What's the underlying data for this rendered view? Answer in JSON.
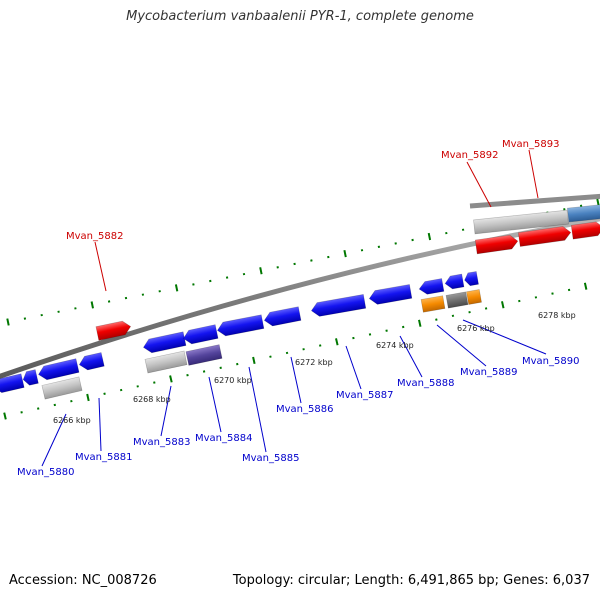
{
  "title": "Mycobacterium vanbaalenii PYR-1, complete genome",
  "footer": {
    "accession": "Accession: NC_008726",
    "stats": "Topology: circular; Length: 6,491,865 bp; Genes: 6,037"
  },
  "colors": {
    "background": "#ffffff",
    "backbone": "#808080",
    "forward_gene": "#ff0000",
    "reverse_gene": "#0000ee",
    "pseudo_or_rna": "#bbbbbb",
    "trna": "#ff8800",
    "label_forward": "#cc0000",
    "label_reverse": "#0000cc",
    "tick": "#007700"
  },
  "kbp_ticks": [
    "6266 kbp",
    "6268 kbp",
    "6270 kbp",
    "6272 kbp",
    "6274 kbp",
    "6276 kbp",
    "6278 kbp"
  ],
  "gene_labels": [
    {
      "name": "Mvan_5880",
      "strand": "reverse"
    },
    {
      "name": "Mvan_5881",
      "strand": "reverse"
    },
    {
      "name": "Mvan_5882",
      "strand": "forward"
    },
    {
      "name": "Mvan_5883",
      "strand": "reverse"
    },
    {
      "name": "Mvan_5884",
      "strand": "reverse"
    },
    {
      "name": "Mvan_5885",
      "strand": "reverse"
    },
    {
      "name": "Mvan_5886",
      "strand": "reverse"
    },
    {
      "name": "Mvan_5887",
      "strand": "reverse"
    },
    {
      "name": "Mvan_5888",
      "strand": "reverse"
    },
    {
      "name": "Mvan_5889",
      "strand": "reverse"
    },
    {
      "name": "Mvan_5890",
      "strand": "reverse"
    },
    {
      "name": "Mvan_5892",
      "strand": "forward"
    },
    {
      "name": "Mvan_5893",
      "strand": "forward"
    }
  ]
}
